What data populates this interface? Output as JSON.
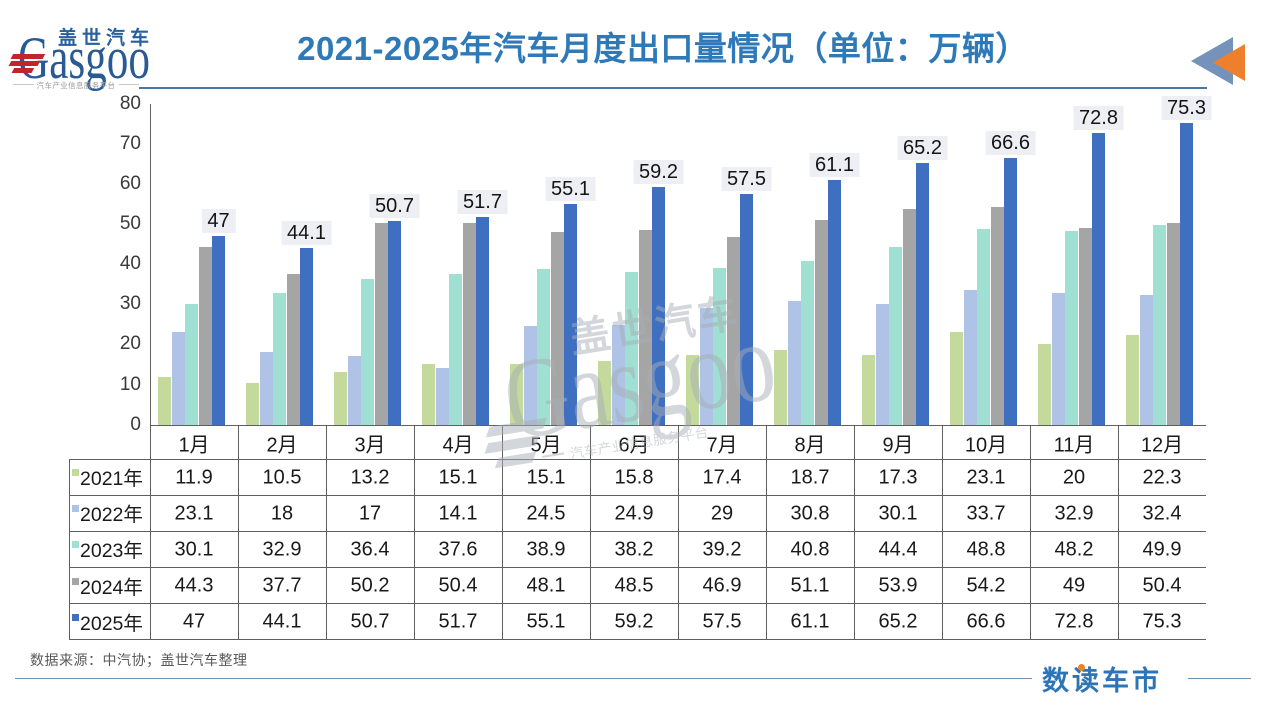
{
  "header": {
    "logo": {
      "brand_cn": "盖世汽车",
      "brand_en": "Gasgoo",
      "tagline": "汽车产业信息服务平台"
    },
    "title": "2021-2025年汽车月度出口量情况（单位：万辆）",
    "corner_icon": "double-left-triangles-icon",
    "colors": {
      "title": "#2e79b8",
      "underline": "#2e78b8",
      "triangle_back": "#7593ba",
      "triangle_front": "#ee7f2d"
    }
  },
  "chart_data": {
    "type": "bar",
    "title": "2021-2025年汽车月度出口量情况（单位：万辆）",
    "xlabel": "",
    "ylabel": "",
    "unit": "万辆",
    "categories": [
      "1月",
      "2月",
      "3月",
      "4月",
      "5月",
      "6月",
      "7月",
      "8月",
      "9月",
      "10月",
      "11月",
      "12月"
    ],
    "series": [
      {
        "name": "2021年",
        "color": "#c4da9c",
        "values": [
          11.9,
          10.5,
          13.2,
          15.1,
          15.1,
          15.8,
          17.4,
          18.7,
          17.3,
          23.1,
          20,
          22.3
        ]
      },
      {
        "name": "2022年",
        "color": "#aec3e6",
        "values": [
          23.1,
          18,
          17,
          14.1,
          24.5,
          24.9,
          29,
          30.8,
          30.1,
          33.7,
          32.9,
          32.4
        ]
      },
      {
        "name": "2023年",
        "color": "#9fe0d2",
        "values": [
          30.1,
          32.9,
          36.4,
          37.6,
          38.9,
          38.2,
          39.2,
          40.8,
          44.4,
          48.8,
          48.2,
          49.9
        ]
      },
      {
        "name": "2024年",
        "color": "#a5a5a5",
        "values": [
          44.3,
          37.7,
          50.2,
          50.4,
          48.1,
          48.5,
          46.9,
          51.1,
          53.9,
          54.2,
          49,
          50.4
        ]
      },
      {
        "name": "2025年",
        "color": "#3e6fc1",
        "values": [
          47,
          44.1,
          50.7,
          51.7,
          55.1,
          59.2,
          57.5,
          61.1,
          65.2,
          66.6,
          72.8,
          75.3
        ],
        "data_labels": true
      }
    ],
    "ylim": [
      0,
      80
    ],
    "ytick_step": 10,
    "grid": false,
    "legend_position": "table-rows",
    "data_label_background": "#edeff5"
  },
  "watermark": {
    "brand_cn": "盖世汽车",
    "brand_en": "Gasgoo",
    "tagline": "汽车产业信息服务平台"
  },
  "footer": {
    "source": "数据来源：中汽协；盖世汽车整理",
    "brand": "数读车市"
  }
}
